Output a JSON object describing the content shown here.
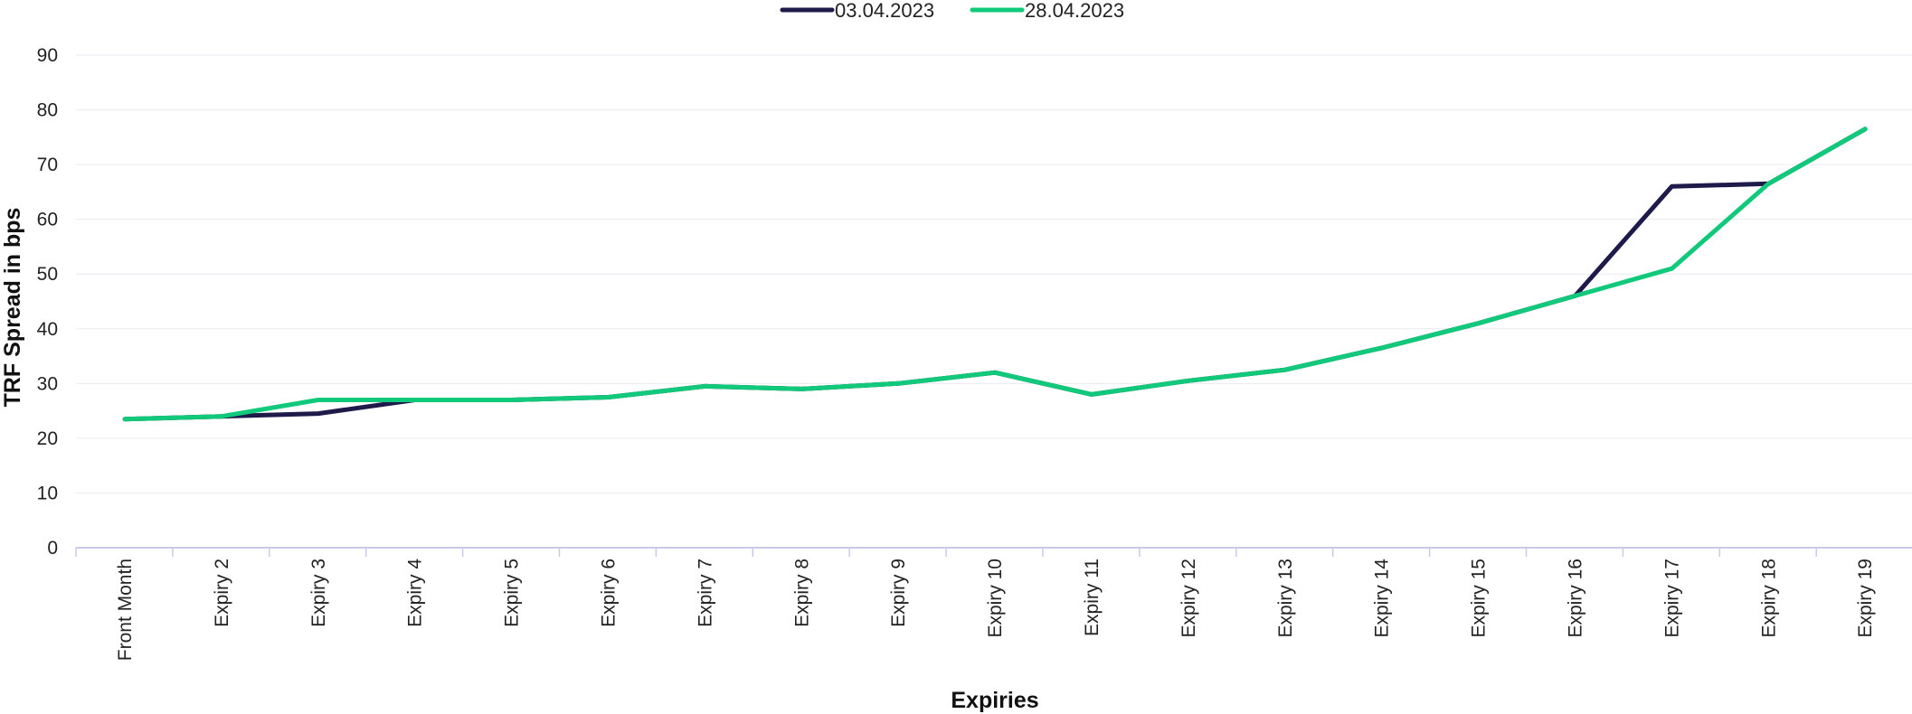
{
  "chart_data": {
    "type": "line",
    "title": "",
    "xlabel": "Expiries",
    "ylabel": "TRF Spread in bps",
    "ylim": [
      0,
      90
    ],
    "yticks": [
      0,
      10,
      20,
      30,
      40,
      50,
      60,
      70,
      80,
      90
    ],
    "grid": "horizontal",
    "legend_position": "top-center",
    "categories": [
      "Front Month",
      "Expiry 2",
      "Expiry 3",
      "Expiry 4",
      "Expiry 5",
      "Expiry 6",
      "Expiry 7",
      "Expiry 8",
      "Expiry 9",
      "Expiry 10",
      "Expiry 11",
      "Expiry 12",
      "Expiry 13",
      "Expiry 14",
      "Expiry 15",
      "Expiry 16",
      "Expiry 17",
      "Expiry 18",
      "Expiry 19"
    ],
    "series": [
      {
        "name": "03.04.2023",
        "color": "#1e1b4b",
        "values": [
          23.5,
          24,
          24.5,
          27,
          27,
          27.5,
          29.5,
          29,
          30,
          32,
          28,
          30.5,
          32.5,
          36.5,
          41,
          46,
          66,
          66.5,
          76.5
        ]
      },
      {
        "name": "28.04.2023",
        "color": "#10c97a",
        "values": [
          23.5,
          24,
          27,
          27,
          27,
          27.5,
          29.5,
          29,
          30,
          32,
          28,
          30.5,
          32.5,
          36.5,
          41,
          46,
          51,
          66.5,
          76.5
        ]
      }
    ]
  }
}
